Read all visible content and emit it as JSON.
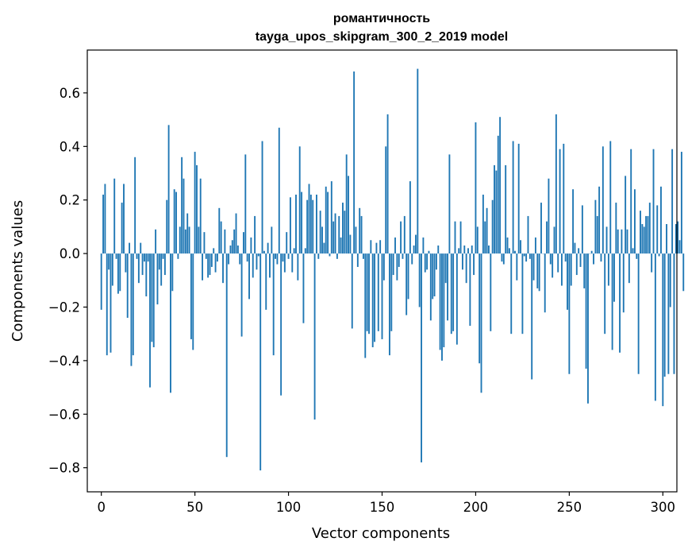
{
  "chart_data": {
    "type": "bar",
    "title": "романтичность",
    "subtitle": "tayga_upos_skipgram_300_2_2019 model",
    "xlabel": "Vector components",
    "ylabel": "Components values",
    "xlim": [
      -7.5,
      307.5
    ],
    "ylim": [
      -0.89,
      0.76
    ],
    "xticks": [
      0,
      50,
      100,
      150,
      200,
      250,
      300
    ],
    "xtick_labels": [
      "0",
      "50",
      "100",
      "150",
      "200",
      "250",
      "300"
    ],
    "yticks": [
      -0.8,
      -0.6,
      -0.4,
      -0.2,
      0.0,
      0.2,
      0.4,
      0.6
    ],
    "ytick_labels": [
      "−0.8",
      "−0.6",
      "−0.4",
      "−0.2",
      "0.0",
      "0.2",
      "0.4",
      "0.6"
    ],
    "grid": false,
    "bar_color": "#1f77b4",
    "values": [
      -0.21,
      0.22,
      0.26,
      -0.38,
      -0.06,
      -0.37,
      -0.12,
      0.28,
      -0.02,
      -0.15,
      -0.14,
      0.19,
      0.26,
      -0.07,
      -0.24,
      0.04,
      -0.42,
      -0.38,
      0.36,
      -0.02,
      -0.11,
      0.04,
      -0.08,
      -0.03,
      -0.16,
      -0.03,
      -0.5,
      -0.33,
      -0.35,
      0.09,
      -0.19,
      -0.06,
      -0.12,
      -0.02,
      -0.08,
      0.2,
      0.48,
      -0.52,
      -0.14,
      0.24,
      0.23,
      -0.02,
      0.1,
      0.36,
      0.28,
      0.09,
      0.15,
      0.1,
      -0.32,
      -0.36,
      0.38,
      0.33,
      0.1,
      0.28,
      -0.1,
      0.08,
      -0.02,
      -0.09,
      -0.08,
      -0.05,
      0.02,
      -0.07,
      -0.03,
      0.17,
      0.12,
      -0.11,
      0.09,
      -0.76,
      -0.04,
      0.03,
      0.05,
      0.09,
      0.15,
      0.03,
      -0.04,
      -0.31,
      0.08,
      0.37,
      -0.03,
      -0.17,
      0.06,
      -0.09,
      0.14,
      -0.06,
      -0.01,
      -0.81,
      0.42,
      0.01,
      -0.21,
      0.04,
      -0.09,
      0.1,
      -0.38,
      -0.02,
      -0.04,
      0.47,
      -0.53,
      -0.03,
      -0.07,
      0.08,
      -0.02,
      0.21,
      -0.07,
      0.02,
      0.22,
      -0.1,
      0.4,
      0.23,
      -0.26,
      0.02,
      0.2,
      0.26,
      0.22,
      0.2,
      -0.62,
      0.22,
      -0.02,
      0.16,
      0.1,
      0.04,
      0.25,
      0.23,
      -0.01,
      0.27,
      0.12,
      0.15,
      -0.02,
      0.14,
      0.06,
      0.19,
      0.16,
      0.37,
      0.29,
      0.07,
      -0.28,
      0.68,
      0.1,
      -0.05,
      0.17,
      0.14,
      -0.02,
      -0.39,
      -0.29,
      -0.3,
      0.05,
      -0.35,
      -0.33,
      0.04,
      -0.29,
      0.05,
      -0.32,
      -0.1,
      0.4,
      0.52,
      -0.38,
      -0.29,
      -0.08,
      0.06,
      -0.1,
      -0.05,
      0.12,
      -0.02,
      0.14,
      -0.23,
      -0.17,
      0.27,
      -0.04,
      0.03,
      0.07,
      0.69,
      -0.2,
      -0.78,
      0.06,
      -0.07,
      -0.06,
      0.01,
      -0.25,
      -0.17,
      -0.16,
      -0.06,
      0.03,
      -0.36,
      -0.4,
      -0.35,
      -0.11,
      -0.25,
      0.37,
      -0.3,
      -0.29,
      0.12,
      -0.34,
      0.02,
      0.12,
      -0.06,
      0.03,
      -0.11,
      0.02,
      -0.27,
      0.03,
      -0.08,
      0.49,
      0.1,
      -0.41,
      -0.52,
      0.22,
      0.12,
      0.17,
      0.03,
      -0.29,
      0.2,
      0.33,
      0.31,
      0.44,
      0.51,
      -0.03,
      -0.04,
      0.33,
      0.06,
      0.02,
      -0.3,
      0.42,
      0.01,
      -0.1,
      0.41,
      0.05,
      -0.3,
      -0.01,
      -0.03,
      0.14,
      -0.02,
      -0.47,
      -0.1,
      0.06,
      -0.13,
      -0.14,
      0.19,
      0.0,
      -0.22,
      0.12,
      0.28,
      -0.04,
      -0.09,
      0.1,
      0.52,
      -0.07,
      0.39,
      -0.12,
      0.41,
      -0.03,
      -0.21,
      -0.45,
      -0.12,
      0.24,
      0.04,
      -0.08,
      0.02,
      -0.05,
      0.18,
      -0.13,
      -0.43,
      -0.56,
      0.0,
      0.01,
      -0.04,
      0.2,
      0.14,
      0.25,
      -0.03,
      0.4,
      -0.3,
      0.1,
      -0.12,
      0.42,
      -0.36,
      -0.18,
      0.19,
      0.09,
      -0.37,
      0.09,
      -0.22,
      0.29,
      0.09,
      -0.11,
      0.39,
      0.02,
      0.24,
      -0.02,
      -0.45,
      0.16,
      0.11,
      0.1,
      0.14,
      0.14,
      0.19,
      -0.07,
      0.39,
      -0.55,
      0.18,
      -0.01,
      0.25,
      -0.57,
      -0.46,
      0.11,
      -0.45,
      -0.2,
      0.39,
      -0.45,
      0.11,
      0.12,
      0.05,
      0.38,
      -0.14
    ]
  }
}
